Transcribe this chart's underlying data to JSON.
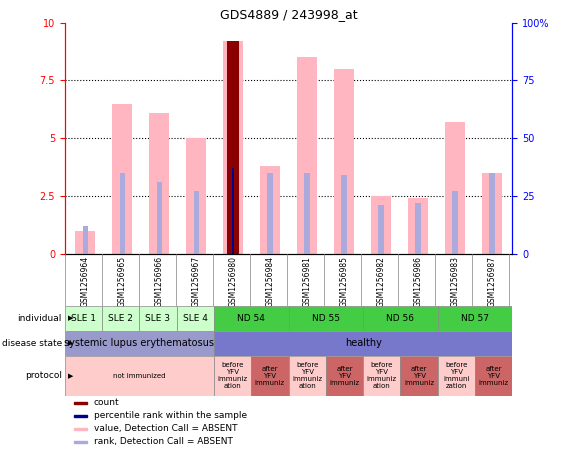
{
  "title": "GDS4889 / 243998_at",
  "samples": [
    "GSM1256964",
    "GSM1256965",
    "GSM1256966",
    "GSM1256967",
    "GSM1256980",
    "GSM1256984",
    "GSM1256981",
    "GSM1256985",
    "GSM1256982",
    "GSM1256986",
    "GSM1256983",
    "GSM1256987"
  ],
  "bar_values": [
    1.0,
    6.5,
    6.1,
    5.0,
    9.2,
    3.8,
    8.5,
    8.0,
    2.5,
    2.4,
    5.7,
    3.5
  ],
  "rank_values": [
    1.2,
    3.5,
    3.1,
    2.7,
    3.7,
    3.5,
    3.5,
    3.4,
    2.1,
    2.2,
    2.7,
    3.5
  ],
  "count_bar_idx": 4,
  "count_value": 9.2,
  "percentile_bar_idx": 4,
  "percentile_value": 3.7,
  "ylim": [
    0,
    10
  ],
  "yticks": [
    0,
    2.5,
    5.0,
    7.5,
    10
  ],
  "ytick_labels": [
    "0",
    "2.5",
    "5",
    "7.5",
    "10"
  ],
  "y2ticks": [
    0,
    25,
    50,
    75,
    100
  ],
  "y2tick_labels": [
    "0",
    "25",
    "50",
    "75",
    "100%"
  ],
  "bar_color": "#ffb6c1",
  "rank_color": "#aaaadd",
  "count_color": "#8b0000",
  "percentile_color": "#00008b",
  "individual_labels": [
    {
      "text": "SLE 1",
      "start": 0,
      "end": 1,
      "color": "#ccffcc"
    },
    {
      "text": "SLE 2",
      "start": 1,
      "end": 2,
      "color": "#ccffcc"
    },
    {
      "text": "SLE 3",
      "start": 2,
      "end": 3,
      "color": "#ccffcc"
    },
    {
      "text": "SLE 4",
      "start": 3,
      "end": 4,
      "color": "#ccffcc"
    },
    {
      "text": "ND 54",
      "start": 4,
      "end": 6,
      "color": "#44cc44"
    },
    {
      "text": "ND 55",
      "start": 6,
      "end": 8,
      "color": "#44cc44"
    },
    {
      "text": "ND 56",
      "start": 8,
      "end": 10,
      "color": "#44cc44"
    },
    {
      "text": "ND 57",
      "start": 10,
      "end": 12,
      "color": "#44cc44"
    }
  ],
  "disease_labels": [
    {
      "text": "systemic lupus erythematosus",
      "start": 0,
      "end": 4,
      "color": "#9999cc"
    },
    {
      "text": "healthy",
      "start": 4,
      "end": 12,
      "color": "#7777cc"
    }
  ],
  "protocol_labels": [
    {
      "text": "not immunized",
      "start": 0,
      "end": 4,
      "color": "#ffcccc"
    },
    {
      "text": "before\nYFV\nimmuniz\nation",
      "start": 4,
      "end": 5,
      "color": "#ffcccc"
    },
    {
      "text": "after\nYFV\nimmuniz",
      "start": 5,
      "end": 6,
      "color": "#cc6666"
    },
    {
      "text": "before\nYFV\nimmuniz\nation",
      "start": 6,
      "end": 7,
      "color": "#ffcccc"
    },
    {
      "text": "after\nYFV\nimmuniz",
      "start": 7,
      "end": 8,
      "color": "#cc6666"
    },
    {
      "text": "before\nYFV\nimmuniz\nation",
      "start": 8,
      "end": 9,
      "color": "#ffcccc"
    },
    {
      "text": "after\nYFV\nimmuniz",
      "start": 9,
      "end": 10,
      "color": "#cc6666"
    },
    {
      "text": "before\nYFV\nimmuni\nzation",
      "start": 10,
      "end": 11,
      "color": "#ffcccc"
    },
    {
      "text": "after\nYFV\nimmuniz",
      "start": 11,
      "end": 12,
      "color": "#cc6666"
    }
  ],
  "legend_items": [
    {
      "label": "count",
      "color": "#8b0000"
    },
    {
      "label": "percentile rank within the sample",
      "color": "#00008b"
    },
    {
      "label": "value, Detection Call = ABSENT",
      "color": "#ffb6c1"
    },
    {
      "label": "rank, Detection Call = ABSENT",
      "color": "#aaaadd"
    }
  ],
  "xtick_bg_color": "#cccccc",
  "left_label_color": "#333333",
  "spine_left_color": "red",
  "spine_right_color": "blue",
  "ytick_color": "red",
  "y2tick_color": "blue"
}
